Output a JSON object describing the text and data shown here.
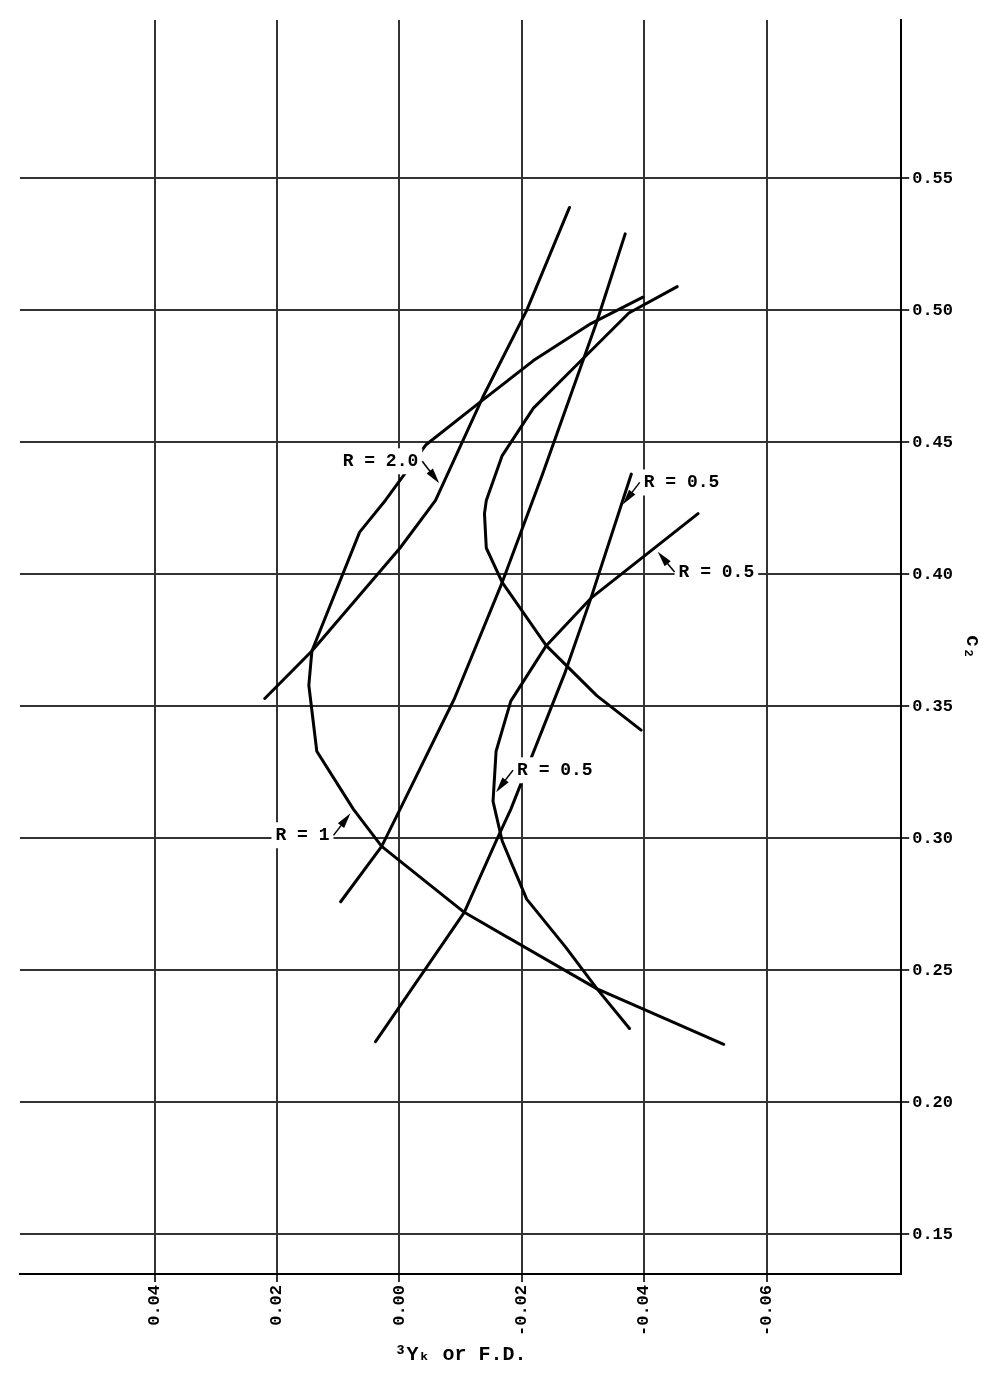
{
  "chart_data": {
    "type": "line",
    "xlabel": "³Yₖ or F.D.",
    "ylabel": "c₂",
    "xlim": [
      0.062,
      -0.082
    ],
    "ylim": [
      0.135,
      0.61
    ],
    "yticks": [
      0.15,
      {
        "value": 0.2,
        "label": "0.20"
      },
      0.25,
      {
        "value": 0.3,
        "label": "0.30"
      },
      0.35,
      {
        "value": 0.4,
        "label": "0.40"
      },
      0.45,
      {
        "value": 0.5,
        "label": "0.50"
      },
      0.55
    ],
    "xticks": [
      {
        "value": -0.06,
        "label": "-0.06"
      },
      {
        "value": -0.04,
        "label": "-0.04"
      },
      {
        "value": -0.02,
        "label": "-0.02"
      },
      {
        "value": 0,
        "label": "0.00"
      },
      {
        "value": 0.02,
        "label": "0.02"
      },
      {
        "value": 0.04,
        "label": "0.04"
      }
    ],
    "grid": true,
    "legend": false,
    "marker": "none",
    "line_style": "solid",
    "series": [
      {
        "color": "#000000",
        "values": [
          0.539,
          0.5,
          0.467,
          0.428,
          0.41,
          0.371,
          0.353
        ],
        "x": [
          -0.0278,
          -0.0208,
          -0.0136,
          -0.0059,
          -0.0001,
          0.0143,
          0.022
        ]
      },
      {
        "color": "#000000",
        "values": [
          0.529,
          0.496,
          0.479,
          0.438,
          0.397,
          0.353,
          0.311,
          0.297,
          0.276
        ],
        "x": [
          -0.0369,
          -0.0323,
          -0.0297,
          -0.0234,
          -0.0168,
          -0.009,
          -0.0001,
          0.0029,
          0.0096
        ]
      },
      {
        "color": "#000000",
        "values": [
          0.438,
          0.391,
          0.363,
          0.311,
          0.299,
          0.272,
          0.223
        ],
        "x": [
          -0.0379,
          -0.0313,
          -0.0271,
          -0.0182,
          -0.0158,
          -0.0106,
          0.0039
        ]
      },
      {
        "color": "#000000",
        "values": [
          0.505,
          0.495,
          0.481,
          0.466,
          0.449,
          0.428,
          0.416,
          0.371,
          0.358,
          0.333,
          0.311,
          0.297,
          0.272,
          0.243,
          0.222
        ],
        "x": [
          -0.0398,
          -0.0313,
          -0.0219,
          -0.0136,
          -0.0043,
          0.0023,
          0.0065,
          0.0143,
          0.0148,
          0.0135,
          0.0075,
          0.0029,
          -0.0106,
          -0.0323,
          -0.053
        ]
      },
      {
        "color": "#000000",
        "values": [
          0.509,
          0.499,
          0.481,
          0.463,
          0.445,
          0.428,
          0.423,
          0.41,
          0.397,
          0.373,
          0.354,
          0.341
        ],
        "x": [
          -0.0454,
          -0.0375,
          -0.0297,
          -0.0219,
          -0.0168,
          -0.0142,
          -0.0139,
          -0.0142,
          -0.0168,
          -0.024,
          -0.0323,
          -0.0395
        ]
      },
      {
        "color": "#000000",
        "values": [
          0.423,
          0.391,
          0.373,
          0.352,
          0.333,
          0.314,
          0.299,
          0.277,
          0.259,
          0.243,
          0.228
        ],
        "x": [
          -0.0488,
          -0.0313,
          -0.024,
          -0.0182,
          -0.0158,
          -0.0153,
          -0.0168,
          -0.0208,
          -0.0271,
          -0.0323,
          -0.0376
        ]
      }
    ],
    "annotations": [
      {
        "text": "R = 2.0",
        "x": -0.007,
        "y": 0.433
      },
      {
        "text": "R = 1",
        "x": 0.0075,
        "y": 0.311
      },
      {
        "text": "R = 0.5",
        "x": -0.0153,
        "y": 0.316
      },
      {
        "text": "R = 0.5",
        "x": -0.036,
        "y": 0.425
      },
      {
        "text": "R = 0.5",
        "x": -0.0417,
        "y": 0.41
      }
    ]
  }
}
